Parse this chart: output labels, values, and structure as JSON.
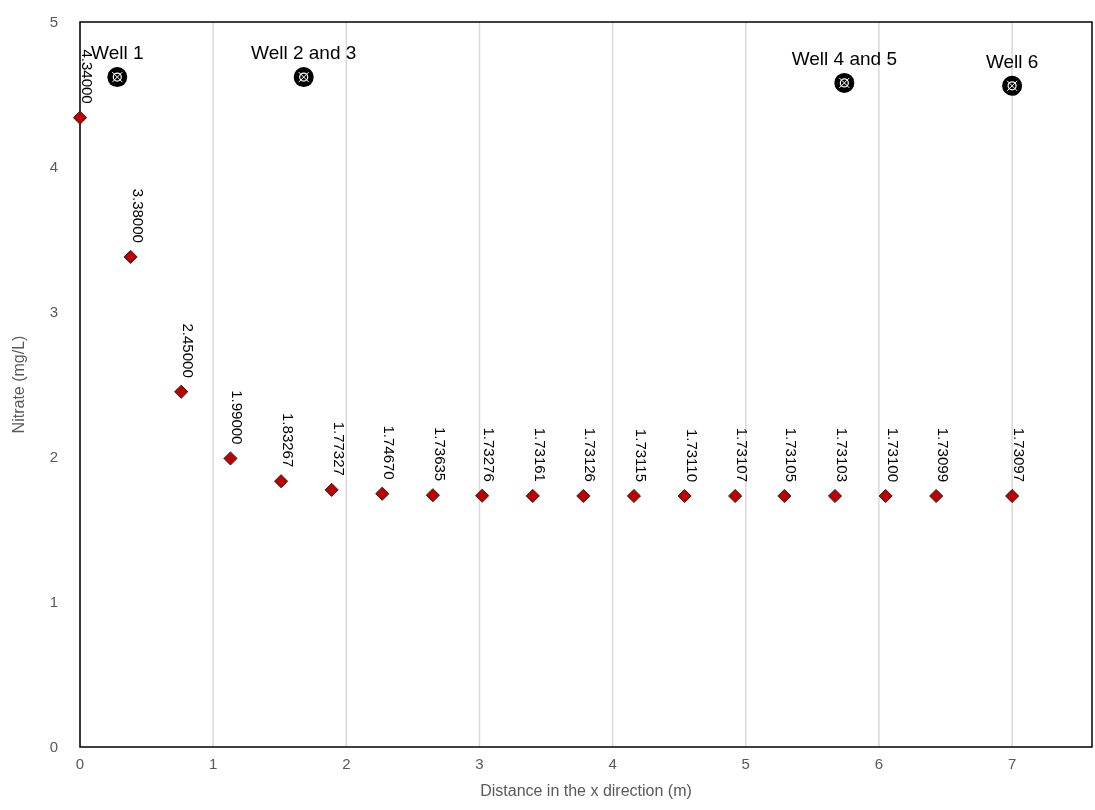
{
  "chart_data": {
    "type": "scatter",
    "xlabel": "Distance in the x direction (m)",
    "ylabel": "Nitrate (mg/L)",
    "xlim": [
      0,
      7.6
    ],
    "xticks": [
      0,
      1,
      2,
      3,
      4,
      5,
      6,
      7
    ],
    "ylim": [
      0,
      5
    ],
    "yticks": [
      0,
      1,
      2,
      3,
      4,
      5
    ],
    "grid": "x",
    "marker": "diamond",
    "series": [
      {
        "color": "#c00000",
        "x": [
          0,
          0.38,
          0.76,
          1.13,
          1.51,
          1.89,
          2.27,
          2.65,
          3.02,
          3.4,
          3.78,
          4.16,
          4.54,
          4.92,
          5.29,
          5.67,
          6.05,
          6.43,
          7
        ],
        "values": [
          4.34,
          3.38,
          2.45,
          1.99,
          1.83267,
          1.77327,
          1.7467,
          1.73635,
          1.73276,
          1.73161,
          1.73126,
          1.73115,
          1.7311,
          1.73107,
          1.73105,
          1.73103,
          1.731,
          1.73099,
          1.73097
        ],
        "value_labels": [
          "4.34000",
          "3.38000",
          "2.45000",
          "1.99000",
          "1.83267",
          "1.77327",
          "1.74670",
          "1.73635",
          "1.73276",
          "1.73161",
          "1.73126",
          "1.73115",
          "1.73110",
          "1.73107",
          "1.73105",
          "1.73103",
          "1.73100",
          "1.73099",
          "1.73097"
        ]
      }
    ],
    "annotations": [
      {
        "text": "Well 1",
        "x": 0.28,
        "y": 4.62
      },
      {
        "text": "Well 2 and 3",
        "x": 1.68,
        "y": 4.62
      },
      {
        "text": "Well 4 and 5",
        "x": 5.74,
        "y": 4.58
      },
      {
        "text": "Well 6",
        "x": 7.0,
        "y": 4.56
      }
    ]
  }
}
